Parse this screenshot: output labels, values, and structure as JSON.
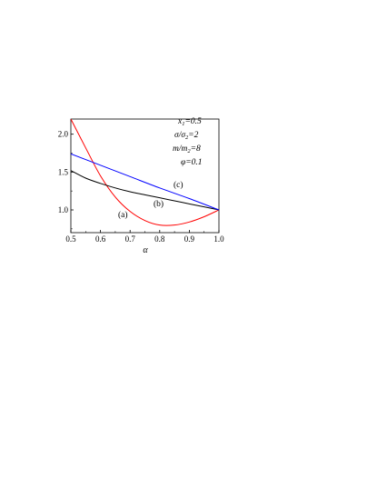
{
  "chart_data": {
    "type": "line",
    "title": "",
    "xlabel": "α",
    "ylabel": "",
    "xlim": [
      0.5,
      1.0
    ],
    "ylim": [
      0.7,
      2.2
    ],
    "xticks": [
      0.5,
      0.6,
      0.7,
      0.8,
      0.9,
      1.0
    ],
    "xtick_labels": [
      "0.5",
      "0.6",
      "0.7",
      "0.8",
      "0.9",
      "1.0"
    ],
    "yticks": [
      1.0,
      1.5,
      2.0
    ],
    "ytick_labels": [
      "1.0",
      "1.5",
      "2.0"
    ],
    "grid": false,
    "legend": "none",
    "series": [
      {
        "label": "(a)",
        "color": "#ff0000",
        "x": [
          0.5,
          0.55,
          0.6,
          0.65,
          0.7,
          0.75,
          0.8,
          0.85,
          0.9,
          0.95,
          1.0
        ],
        "y": [
          2.2,
          1.82,
          1.45,
          1.17,
          0.98,
          0.86,
          0.8,
          0.8,
          0.84,
          0.91,
          1.0
        ]
      },
      {
        "label": "(b)",
        "color": "#000000",
        "x": [
          0.5,
          0.55,
          0.6,
          0.65,
          0.7,
          0.75,
          0.8,
          0.85,
          0.9,
          0.95,
          1.0
        ],
        "y": [
          1.52,
          1.42,
          1.35,
          1.29,
          1.24,
          1.2,
          1.16,
          1.12,
          1.08,
          1.04,
          1.0
        ]
      },
      {
        "label": "(c)",
        "color": "#0000ff",
        "x": [
          0.5,
          0.6,
          0.7,
          0.8,
          0.9,
          1.0
        ],
        "y": [
          1.74,
          1.59,
          1.44,
          1.29,
          1.15,
          1.0
        ]
      }
    ],
    "annotations": [
      {
        "main": "x",
        "sub": "1",
        "rest": "=0.5"
      },
      {
        "main": "σ",
        "sub": "",
        "rest": "/σ",
        "sub2": "2",
        "tail": "=2"
      },
      {
        "main": "m",
        "sub": "",
        "rest": "/m",
        "sub2": "2",
        "tail": "=8"
      },
      {
        "main": "φ",
        "sub": "",
        "rest": "=0.1"
      }
    ]
  }
}
